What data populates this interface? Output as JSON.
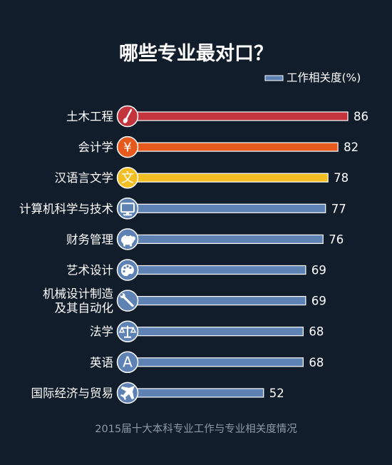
{
  "chart_data": {
    "type": "bar",
    "orientation": "horizontal",
    "title": "哪些专业最对口？",
    "legend": {
      "label": "工作相关度(%)",
      "position": "top-right"
    },
    "categories": [
      "土木工程",
      "会计学",
      "汉语言文学",
      "计算机科学与技术",
      "财务管理",
      "艺术设计",
      "机械设计制造\n及其自动化",
      "法学",
      "英语",
      "国际经济与贸易"
    ],
    "series": [
      {
        "name": "工作相关度(%)",
        "values": [
          86,
          82,
          78,
          77,
          76,
          69,
          69,
          68,
          68,
          52
        ]
      }
    ],
    "xlim": [
      0,
      100
    ],
    "grid": false,
    "caption": "2015届十大本科专业工作与专业相关度情况"
  },
  "styles": {
    "bar_colors": [
      "#c4343c",
      "#e65a1e",
      "#f2be22",
      "#5d82b3",
      "#5d82b3",
      "#5d82b3",
      "#5d82b3",
      "#5d82b3",
      "#5d82b3",
      "#5d82b3"
    ],
    "bar_outline": "#ffffff",
    "badge_colors": [
      "#c4343c",
      "#e65a1e",
      "#f2be22",
      "#5d82b3",
      "#5d82b3",
      "#5d82b3",
      "#5d82b3",
      "#5d82b3",
      "#5d82b3",
      "#5d82b3"
    ],
    "text_color": "#ffffff",
    "caption_color": "#8f99a6",
    "legend_swatch": "#5d82b3"
  },
  "icons": [
    {
      "name": "brush-icon",
      "glyph": ""
    },
    {
      "name": "yen-icon",
      "glyph": "¥"
    },
    {
      "name": "wen-character-icon",
      "glyph": "文"
    },
    {
      "name": "monitor-icon",
      "glyph": ""
    },
    {
      "name": "piggy-bank-icon",
      "glyph": ""
    },
    {
      "name": "palette-icon",
      "glyph": ""
    },
    {
      "name": "wrench-icon",
      "glyph": ""
    },
    {
      "name": "scales-icon",
      "glyph": ""
    },
    {
      "name": "letter-a-icon",
      "glyph": "A"
    },
    {
      "name": "airplane-icon",
      "glyph": ""
    }
  ]
}
